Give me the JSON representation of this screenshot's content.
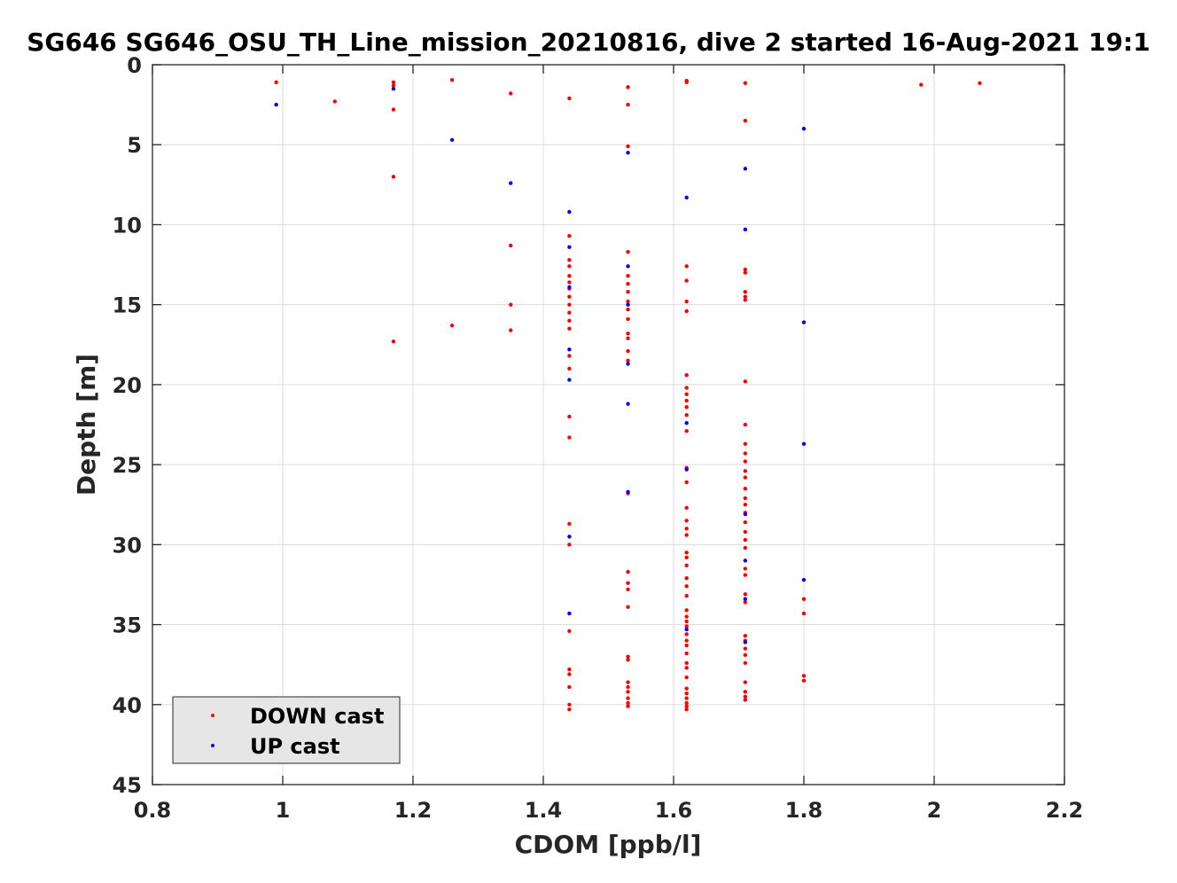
{
  "chart_data": {
    "type": "scatter",
    "title": "SG646 SG646_OSU_TH_Line_mission_20210816, dive 2 started 16-Aug-2021 19:1",
    "xlabel": "CDOM [ppb/l]",
    "ylabel": "Depth [m]",
    "xlim": [
      0.8,
      2.2
    ],
    "ylim": [
      0,
      45
    ],
    "y_reversed": true,
    "grid": true,
    "legend_position": "bottom-left",
    "xticks": [
      "0.8",
      "1",
      "1.2",
      "1.4",
      "1.6",
      "1.8",
      "2",
      "2.2"
    ],
    "yticks": [
      "0",
      "5",
      "10",
      "15",
      "20",
      "25",
      "30",
      "35",
      "40",
      "45"
    ],
    "series": [
      {
        "name": "DOWN cast",
        "color": "#ff0000",
        "points": [
          [
            0.99,
            1.1
          ],
          [
            1.08,
            2.3
          ],
          [
            1.17,
            1.1
          ],
          [
            1.17,
            1.3
          ],
          [
            1.17,
            2.8
          ],
          [
            1.17,
            7.0
          ],
          [
            1.17,
            17.3
          ],
          [
            1.26,
            0.95
          ],
          [
            1.26,
            16.3
          ],
          [
            1.35,
            1.8
          ],
          [
            1.35,
            11.3
          ],
          [
            1.35,
            15.0
          ],
          [
            1.35,
            16.6
          ],
          [
            1.44,
            2.1
          ],
          [
            1.44,
            10.7
          ],
          [
            1.44,
            12.2
          ],
          [
            1.44,
            12.6
          ],
          [
            1.44,
            13.2
          ],
          [
            1.44,
            13.6
          ],
          [
            1.44,
            14.0
          ],
          [
            1.44,
            14.5
          ],
          [
            1.44,
            15.0
          ],
          [
            1.44,
            15.5
          ],
          [
            1.44,
            16.0
          ],
          [
            1.44,
            16.5
          ],
          [
            1.44,
            18.2
          ],
          [
            1.44,
            19.0
          ],
          [
            1.44,
            22.0
          ],
          [
            1.44,
            23.3
          ],
          [
            1.44,
            28.7
          ],
          [
            1.44,
            30.0
          ],
          [
            1.44,
            35.4
          ],
          [
            1.44,
            37.8
          ],
          [
            1.44,
            38.1
          ],
          [
            1.44,
            38.9
          ],
          [
            1.44,
            40.0
          ],
          [
            1.44,
            40.3
          ],
          [
            1.53,
            1.4
          ],
          [
            1.53,
            2.5
          ],
          [
            1.53,
            5.1
          ],
          [
            1.53,
            11.7
          ],
          [
            1.53,
            13.2
          ],
          [
            1.53,
            13.7
          ],
          [
            1.53,
            14.2
          ],
          [
            1.53,
            14.8
          ],
          [
            1.53,
            15.3
          ],
          [
            1.53,
            15.9
          ],
          [
            1.53,
            16.8
          ],
          [
            1.53,
            17.1
          ],
          [
            1.53,
            17.9
          ],
          [
            1.53,
            18.5
          ],
          [
            1.53,
            26.8
          ],
          [
            1.53,
            31.7
          ],
          [
            1.53,
            32.4
          ],
          [
            1.53,
            32.8
          ],
          [
            1.53,
            33.9
          ],
          [
            1.53,
            37.0
          ],
          [
            1.53,
            37.2
          ],
          [
            1.53,
            38.6
          ],
          [
            1.53,
            38.9
          ],
          [
            1.53,
            39.2
          ],
          [
            1.53,
            39.6
          ],
          [
            1.53,
            39.9
          ],
          [
            1.53,
            40.1
          ],
          [
            1.62,
            1.0
          ],
          [
            1.62,
            1.1
          ],
          [
            1.62,
            12.6
          ],
          [
            1.62,
            13.5
          ],
          [
            1.62,
            14.8
          ],
          [
            1.62,
            15.4
          ],
          [
            1.62,
            19.4
          ],
          [
            1.62,
            20.2
          ],
          [
            1.62,
            20.6
          ],
          [
            1.62,
            21.0
          ],
          [
            1.62,
            21.4
          ],
          [
            1.62,
            21.9
          ],
          [
            1.62,
            22.9
          ],
          [
            1.62,
            25.2
          ],
          [
            1.62,
            26.1
          ],
          [
            1.62,
            27.7
          ],
          [
            1.62,
            28.5
          ],
          [
            1.62,
            29.0
          ],
          [
            1.62,
            29.4
          ],
          [
            1.62,
            30.5
          ],
          [
            1.62,
            30.8
          ],
          [
            1.62,
            31.3
          ],
          [
            1.62,
            32.1
          ],
          [
            1.62,
            32.6
          ],
          [
            1.62,
            33.2
          ],
          [
            1.62,
            34.1
          ],
          [
            1.62,
            34.5
          ],
          [
            1.62,
            34.8
          ],
          [
            1.62,
            35.1
          ],
          [
            1.62,
            35.6
          ],
          [
            1.62,
            36.0
          ],
          [
            1.62,
            36.3
          ],
          [
            1.62,
            36.8
          ],
          [
            1.62,
            37.4
          ],
          [
            1.62,
            37.7
          ],
          [
            1.62,
            38.3
          ],
          [
            1.62,
            39.0
          ],
          [
            1.62,
            39.3
          ],
          [
            1.62,
            39.6
          ],
          [
            1.62,
            39.9
          ],
          [
            1.62,
            40.1
          ],
          [
            1.62,
            40.3
          ],
          [
            1.71,
            1.15
          ],
          [
            1.71,
            3.5
          ],
          [
            1.71,
            12.8
          ],
          [
            1.71,
            13.0
          ],
          [
            1.71,
            14.2
          ],
          [
            1.71,
            14.5
          ],
          [
            1.71,
            14.7
          ],
          [
            1.71,
            19.8
          ],
          [
            1.71,
            22.5
          ],
          [
            1.71,
            23.7
          ],
          [
            1.71,
            24.3
          ],
          [
            1.71,
            24.8
          ],
          [
            1.71,
            25.4
          ],
          [
            1.71,
            25.8
          ],
          [
            1.71,
            26.5
          ],
          [
            1.71,
            27.1
          ],
          [
            1.71,
            27.5
          ],
          [
            1.71,
            28.0
          ],
          [
            1.71,
            28.6
          ],
          [
            1.71,
            29.2
          ],
          [
            1.71,
            29.7
          ],
          [
            1.71,
            30.2
          ],
          [
            1.71,
            31.5
          ],
          [
            1.71,
            31.9
          ],
          [
            1.71,
            33.1
          ],
          [
            1.71,
            33.6
          ],
          [
            1.71,
            35.7
          ],
          [
            1.71,
            36.0
          ],
          [
            1.71,
            36.5
          ],
          [
            1.71,
            36.9
          ],
          [
            1.71,
            37.4
          ],
          [
            1.71,
            38.6
          ],
          [
            1.71,
            39.2
          ],
          [
            1.71,
            39.5
          ],
          [
            1.71,
            39.7
          ],
          [
            1.8,
            33.4
          ],
          [
            1.8,
            34.3
          ],
          [
            1.8,
            38.2
          ],
          [
            1.8,
            38.5
          ],
          [
            1.98,
            1.25
          ],
          [
            2.07,
            1.15
          ]
        ]
      },
      {
        "name": "UP cast",
        "color": "#0000ff",
        "points": [
          [
            0.99,
            2.5
          ],
          [
            1.17,
            1.5
          ],
          [
            1.26,
            4.7
          ],
          [
            1.35,
            7.4
          ],
          [
            1.44,
            9.2
          ],
          [
            1.44,
            11.4
          ],
          [
            1.44,
            13.9
          ],
          [
            1.44,
            17.8
          ],
          [
            1.44,
            19.7
          ],
          [
            1.44,
            29.5
          ],
          [
            1.44,
            34.3
          ],
          [
            1.53,
            5.5
          ],
          [
            1.53,
            12.6
          ],
          [
            1.53,
            15.0
          ],
          [
            1.53,
            18.7
          ],
          [
            1.53,
            21.2
          ],
          [
            1.53,
            26.7
          ],
          [
            1.62,
            8.3
          ],
          [
            1.62,
            22.4
          ],
          [
            1.62,
            25.3
          ],
          [
            1.62,
            35.3
          ],
          [
            1.71,
            6.5
          ],
          [
            1.71,
            10.3
          ],
          [
            1.71,
            28.1
          ],
          [
            1.71,
            31.0
          ],
          [
            1.71,
            33.4
          ],
          [
            1.71,
            36.1
          ],
          [
            1.8,
            4.0
          ],
          [
            1.8,
            16.1
          ],
          [
            1.8,
            23.7
          ],
          [
            1.8,
            32.2
          ]
        ]
      }
    ]
  }
}
